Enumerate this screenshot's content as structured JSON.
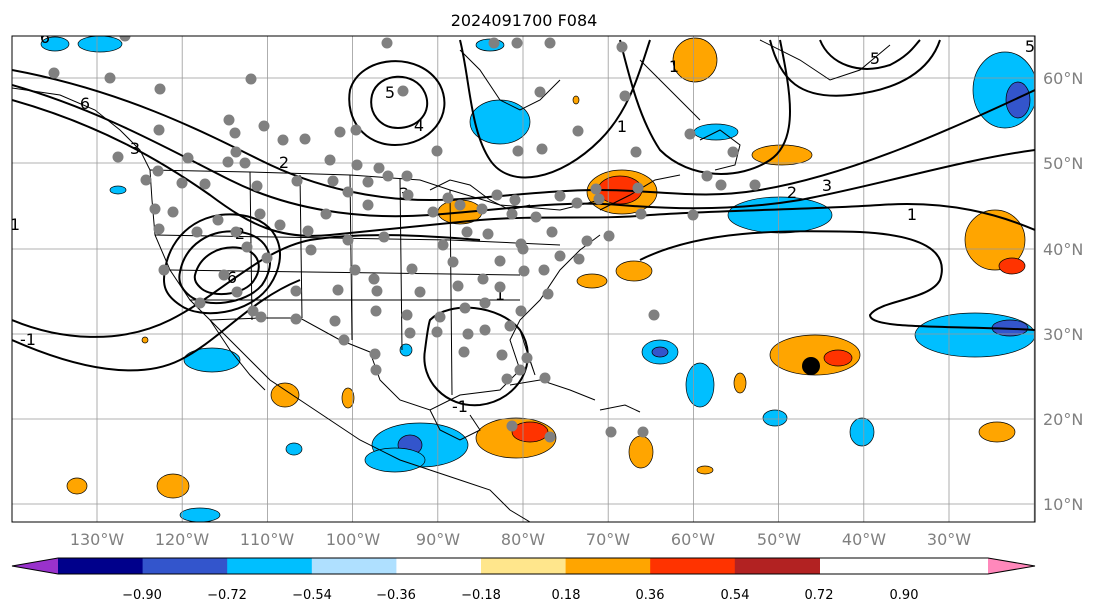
{
  "title": "2024091700 F084",
  "map": {
    "lon_labels": [
      "130°W",
      "120°W",
      "110°W",
      "100°W",
      "90°W",
      "80°W",
      "70°W",
      "60°W",
      "50°W",
      "40°W",
      "30°W"
    ],
    "lat_labels": [
      "60°N",
      "50°N",
      "40°N",
      "30°N",
      "20°N",
      "10°N"
    ],
    "contour_labels": [
      "6",
      "6",
      "5",
      "5",
      "4",
      "3",
      "2",
      "2",
      "1",
      "1",
      "1",
      "1",
      "2",
      "3",
      "5",
      "6",
      "3",
      "-1",
      "1",
      "-1"
    ],
    "fill_colors": {
      "pos_light": "#ffa500",
      "pos_strong": "#ff3300",
      "neg_light": "#00bfff",
      "neg_strong": "#3355cc"
    },
    "marker_colors": {
      "station": "#808080",
      "center": "#000000"
    }
  },
  "colorbar": {
    "colors": [
      "#9932cc",
      "#00008b",
      "#3355cc",
      "#00bfff",
      "#afe0ff",
      "#ffffff",
      "#ffe68c",
      "#ffa500",
      "#ff3300",
      "#b22222",
      "#ff88bb"
    ],
    "tick_labels": [
      "−0.90",
      "−0.72",
      "−0.54",
      "−0.36",
      "−0.18",
      "0.18",
      "0.36",
      "0.54",
      "0.72",
      "0.90"
    ]
  }
}
